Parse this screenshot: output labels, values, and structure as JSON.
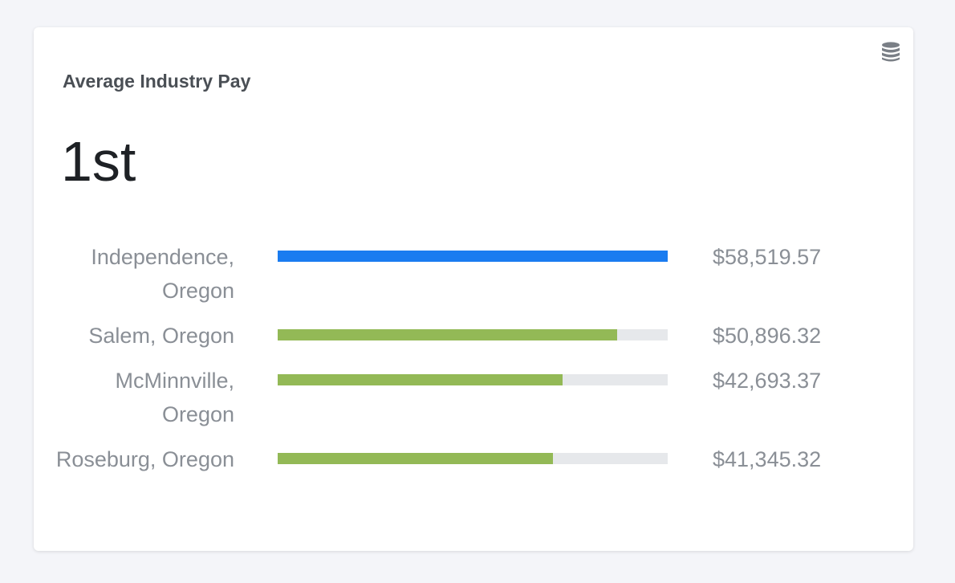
{
  "card": {
    "title": "Average Industry Pay",
    "rank": "1st",
    "icon": "database-icon"
  },
  "colors": {
    "primary_bar": "#1a7cf0",
    "secondary_bar": "#93b956",
    "track": "#e6e8eb"
  },
  "chart_data": {
    "type": "bar",
    "categories": [
      "Independence, Oregon",
      "Salem, Oregon",
      "McMinnville, Oregon",
      "Roseburg, Oregon"
    ],
    "values": [
      58519.57,
      50896.32,
      42693.37,
      41345.32
    ],
    "value_labels": [
      "$58,519.57",
      "$50,896.32",
      "$42,693.37",
      "$41,345.32"
    ],
    "highlighted_index": 0,
    "xlim": [
      0,
      58519.57
    ]
  }
}
